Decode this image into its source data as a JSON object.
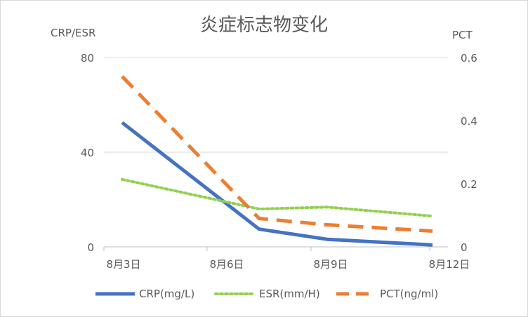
{
  "chart_data": {
    "type": "line",
    "title": "炎症标志物变化",
    "ylabel": "CRP/ESR",
    "y2label": "PCT",
    "ylim": [
      0,
      80
    ],
    "y2lim": [
      0,
      0.6
    ],
    "y_ticks": [
      "0",
      "40",
      "80"
    ],
    "y2_ticks": [
      "0",
      "0.2",
      "0.4",
      "0.6"
    ],
    "x_tick_labels": [
      "8月3日",
      "8月6日",
      "8月9日",
      "8月12日"
    ],
    "x": [
      "8月3日",
      "8月7日",
      "8月9日",
      "8月12日"
    ],
    "series": [
      {
        "name": "CRP(mg/L)",
        "axis": "left",
        "color": "#4472c4",
        "style": "solid",
        "values": [
          52.5,
          7.5,
          3.2,
          0.8
        ]
      },
      {
        "name": "ESR(mm/H)",
        "axis": "left",
        "color": "#92d050",
        "style": "dotted",
        "values": [
          28.5,
          16.0,
          16.8,
          13.0
        ]
      },
      {
        "name": "PCT(ng/ml)",
        "axis": "right",
        "color": "#ed7d31",
        "style": "dashed",
        "values": [
          0.54,
          0.09,
          0.07,
          0.05
        ]
      }
    ],
    "grid": true,
    "legend_position": "bottom"
  }
}
